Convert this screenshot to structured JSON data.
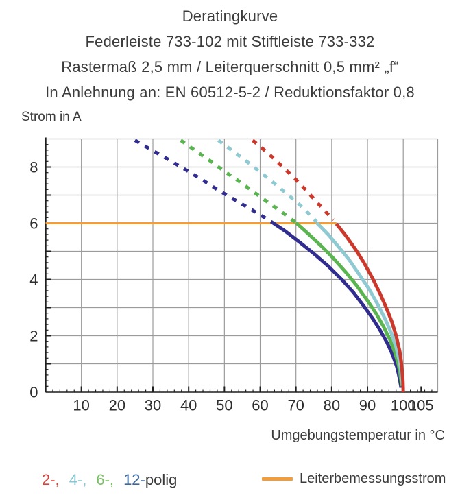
{
  "header": {
    "lines": [
      "Deratingkurve",
      "Federleiste 733-102 mit Stiftleiste 733-332",
      "Rastermaß 2,5 mm / Leiterquerschnitt 0,5 mm² „f“",
      "In Anlehnung an: EN 60512-5-2 / Reduktionsfaktor 0,8"
    ]
  },
  "chart_data": {
    "type": "line",
    "title": "Deratingkurve",
    "xlabel": "Umgebungstemperatur in °C",
    "ylabel": "Strom in A",
    "xlim": [
      0,
      109.5
    ],
    "ylim": [
      0,
      9
    ],
    "x_ticks": [
      10,
      20,
      30,
      40,
      50,
      60,
      70,
      80,
      90,
      100,
      105
    ],
    "y_ticks": [
      0,
      2,
      4,
      6,
      8
    ],
    "grid": true,
    "grid_color": "#9b9b9b",
    "axis_color": "#1f1f1f",
    "rated_current_line": {
      "label": "Leiterbemessungsstrom",
      "value": 6,
      "x_start": 0,
      "x_end": 81.3,
      "color": "#f09d3a"
    },
    "series": [
      {
        "name": "12-polig",
        "color": "#312d8e",
        "legend_color": "#3b679f",
        "dashed": [
          [
            25,
            8.95
          ],
          [
            30,
            8.58
          ],
          [
            35,
            8.22
          ],
          [
            40,
            7.84
          ],
          [
            44,
            7.53
          ],
          [
            48,
            7.2
          ],
          [
            52,
            6.9
          ],
          [
            56,
            6.6
          ],
          [
            60,
            6.3
          ],
          [
            63.5,
            6.02
          ]
        ],
        "solid": [
          [
            63.5,
            6.02
          ],
          [
            67,
            5.72
          ],
          [
            71,
            5.33
          ],
          [
            75,
            4.92
          ],
          [
            79,
            4.48
          ],
          [
            83,
            3.97
          ],
          [
            86,
            3.55
          ],
          [
            89,
            3.05
          ],
          [
            91.5,
            2.6
          ],
          [
            93.5,
            2.2
          ],
          [
            95.5,
            1.75
          ],
          [
            97,
            1.33
          ],
          [
            98.2,
            0.9
          ],
          [
            99,
            0.45
          ],
          [
            99.4,
            0.15
          ]
        ]
      },
      {
        "name": "6-polig",
        "color": "#5ab450",
        "legend_color": "#79bf63",
        "dashed": [
          [
            37.8,
            8.95
          ],
          [
            42,
            8.57
          ],
          [
            46,
            8.22
          ],
          [
            50,
            7.85
          ],
          [
            54,
            7.5
          ],
          [
            58,
            7.13
          ],
          [
            62,
            6.76
          ],
          [
            66,
            6.4
          ],
          [
            70,
            6.02
          ]
        ],
        "solid": [
          [
            70,
            6.02
          ],
          [
            73.5,
            5.62
          ],
          [
            77,
            5.2
          ],
          [
            80.5,
            4.75
          ],
          [
            84,
            4.25
          ],
          [
            87,
            3.78
          ],
          [
            90,
            3.25
          ],
          [
            92.5,
            2.77
          ],
          [
            94.5,
            2.32
          ],
          [
            96.2,
            1.88
          ],
          [
            97.6,
            1.42
          ],
          [
            98.7,
            0.95
          ],
          [
            99.3,
            0.5
          ],
          [
            99.6,
            0.2
          ]
        ]
      },
      {
        "name": "4-polig",
        "color": "#8fc9d2",
        "legend_color": "#8ac6d4",
        "dashed": [
          [
            48.3,
            8.95
          ],
          [
            52,
            8.6
          ],
          [
            55.5,
            8.27
          ],
          [
            59,
            7.92
          ],
          [
            62.5,
            7.57
          ],
          [
            66,
            7.2
          ],
          [
            69,
            6.88
          ],
          [
            72,
            6.55
          ],
          [
            75.8,
            6.05
          ]
        ],
        "solid": [
          [
            75.8,
            6.02
          ],
          [
            79,
            5.6
          ],
          [
            82,
            5.15
          ],
          [
            85,
            4.68
          ],
          [
            88,
            4.12
          ],
          [
            90.5,
            3.65
          ],
          [
            93,
            3.08
          ],
          [
            95,
            2.58
          ],
          [
            96.8,
            2.05
          ],
          [
            98,
            1.6
          ],
          [
            99,
            1.05
          ],
          [
            99.5,
            0.6
          ],
          [
            99.8,
            0.25
          ]
        ]
      },
      {
        "name": "2-polig",
        "color": "#cb382c",
        "legend_color": "#d5423a",
        "dashed": [
          [
            57.9,
            8.95
          ],
          [
            61,
            8.62
          ],
          [
            64,
            8.28
          ],
          [
            67,
            7.92
          ],
          [
            70,
            7.55
          ],
          [
            73,
            7.15
          ],
          [
            76,
            6.73
          ],
          [
            78.5,
            6.38
          ],
          [
            80.5,
            6.12
          ]
        ],
        "solid": [
          [
            81.3,
            5.98
          ],
          [
            84,
            5.55
          ],
          [
            86.5,
            5.1
          ],
          [
            89,
            4.6
          ],
          [
            91.5,
            4.02
          ],
          [
            93.5,
            3.5
          ],
          [
            95.3,
            2.98
          ],
          [
            96.8,
            2.5
          ],
          [
            98,
            2.0
          ],
          [
            99,
            1.45
          ],
          [
            99.6,
            0.9
          ],
          [
            99.9,
            0.4
          ],
          [
            100,
            0.0
          ]
        ]
      }
    ]
  },
  "legend": {
    "pole_items": [
      {
        "label": "2-,",
        "color": "#d5423a"
      },
      {
        "label": "4-,",
        "color": "#8ac6d4"
      },
      {
        "label": "6-,",
        "color": "#79bf63"
      },
      {
        "label": "12-",
        "color": "#3b679f"
      }
    ],
    "suffix": "polig",
    "rated": {
      "label": "Leiterbemessungsstrom",
      "color": "#f09d3a"
    }
  }
}
